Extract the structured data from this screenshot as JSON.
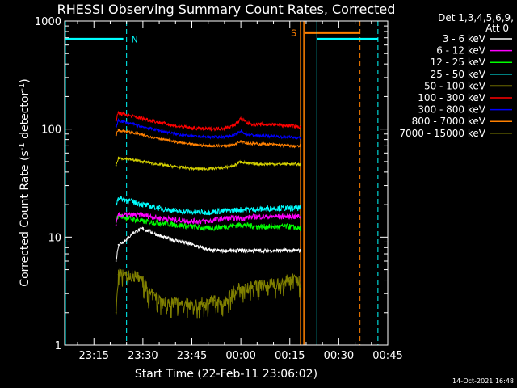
{
  "chart_data": {
    "type": "line",
    "title": "RHESSI Observing Summary Count Rates, Corrected",
    "xlabel": "Start Time (22-Feb-11 23:06:02)",
    "ylabel_main": "Corrected Count Rate (s",
    "ylabel_sup1": "-1",
    "ylabel_mid": " detector",
    "ylabel_sup2": "-1",
    "ylabel_end": ")",
    "yscale": "log",
    "ylim": [
      1,
      1000
    ],
    "xlim": [
      6.03,
      105
    ],
    "x_unit": "minutes after 23:00:00",
    "xticks": [
      {
        "value": 15,
        "label": "23:15"
      },
      {
        "value": 30,
        "label": "23:30"
      },
      {
        "value": 45,
        "label": "23:45"
      },
      {
        "value": 60,
        "label": "00:00"
      },
      {
        "value": 75,
        "label": "00:15"
      },
      {
        "value": 90,
        "label": "00:30"
      },
      {
        "value": 105,
        "label": "00:45"
      }
    ],
    "yticks": [
      {
        "value": 1,
        "label": "1"
      },
      {
        "value": 10,
        "label": "10"
      },
      {
        "value": 100,
        "label": "100"
      },
      {
        "value": 1000,
        "label": "1000"
      }
    ],
    "legend_header": [
      "Det 1,3,4,5,6,9,",
      "Att 0"
    ],
    "legend_placement": "right",
    "data_interval": [
      21.8,
      78.3
    ],
    "series": [
      {
        "name": "3 - 6 keV",
        "color": "#ffffff",
        "x": [
          21.8,
          22.5,
          25,
          27,
          30,
          33,
          36,
          39,
          42,
          45,
          48,
          51,
          54,
          57,
          60,
          63,
          66,
          69,
          72,
          75,
          78.3
        ],
        "y": [
          6.0,
          8.5,
          9.5,
          11.0,
          12.0,
          11.0,
          10.0,
          9.5,
          9.0,
          8.5,
          8.0,
          7.5,
          7.5,
          7.5,
          7.5,
          7.5,
          7.5,
          7.5,
          7.5,
          7.5,
          7.5
        ]
      },
      {
        "name": "6 - 12 keV",
        "color": "#ff00ff",
        "x": [
          21.8,
          22.5,
          25,
          30,
          35,
          40,
          45,
          50,
          55,
          60,
          65,
          70,
          75,
          78.3
        ],
        "y": [
          13.0,
          16.0,
          16.0,
          16.0,
          15.0,
          14.5,
          14.0,
          14.0,
          15.0,
          15.0,
          15.5,
          15.5,
          15.5,
          15.5
        ]
      },
      {
        "name": "12 - 25 keV",
        "color": "#00ff00",
        "x": [
          21.8,
          22.5,
          25,
          30,
          35,
          40,
          45,
          50,
          55,
          60,
          65,
          70,
          75,
          78.3
        ],
        "y": [
          14.0,
          16.0,
          15.0,
          14.0,
          13.5,
          13.0,
          12.5,
          12.0,
          12.5,
          13.0,
          12.5,
          12.5,
          12.5,
          12.0
        ]
      },
      {
        "name": "25 - 50 keV",
        "color": "#00ffff",
        "x": [
          21.8,
          22.5,
          25,
          30,
          35,
          40,
          45,
          50,
          55,
          60,
          65,
          70,
          75,
          78.3
        ],
        "y": [
          20.0,
          23.0,
          22.0,
          20.0,
          18.5,
          17.5,
          17.0,
          17.0,
          17.5,
          18.0,
          18.0,
          18.5,
          18.5,
          18.5
        ]
      },
      {
        "name": "50 - 100 keV",
        "color": "#d4d000",
        "x": [
          21.8,
          22.5,
          25,
          30,
          35,
          40,
          45,
          50,
          55,
          58,
          60,
          62,
          65,
          70,
          75,
          78.3
        ],
        "y": [
          46.0,
          54.0,
          53.0,
          50.0,
          47.0,
          45.0,
          43.0,
          43.0,
          44.0,
          46.0,
          50.0,
          48.0,
          47.5,
          47.5,
          47.5,
          47.0
        ]
      },
      {
        "name": "100 - 300 keV",
        "color": "#ff0000",
        "x": [
          21.8,
          22.5,
          25,
          30,
          35,
          40,
          45,
          50,
          55,
          58,
          60,
          62,
          65,
          70,
          75,
          78.3
        ],
        "y": [
          120.0,
          142.0,
          135.0,
          125.0,
          115.0,
          107.0,
          102.0,
          100.0,
          102.0,
          108.0,
          125.0,
          113.0,
          110.0,
          110.0,
          107.0,
          105.0
        ]
      },
      {
        "name": "300 - 800 keV",
        "color": "#0000ff",
        "x": [
          21.8,
          22.5,
          25,
          30,
          35,
          40,
          45,
          50,
          55,
          58,
          60,
          62,
          65,
          70,
          75,
          78.3
        ],
        "y": [
          105.0,
          120.0,
          115.0,
          105.0,
          97.0,
          90.0,
          86.0,
          84.0,
          85.0,
          88.0,
          95.0,
          89.0,
          87.0,
          86.0,
          84.0,
          83.0
        ]
      },
      {
        "name": "800 - 7000 keV",
        "color": "#ff8000",
        "x": [
          21.8,
          22.5,
          25,
          30,
          35,
          40,
          45,
          50,
          55,
          58,
          60,
          62,
          65,
          70,
          75,
          78.3
        ],
        "y": [
          88.0,
          98.0,
          95.0,
          88.0,
          82.0,
          76.0,
          72.0,
          70.0,
          70.0,
          72.0,
          78.0,
          74.0,
          73.0,
          72.0,
          70.0,
          69.0
        ]
      },
      {
        "name": "7000 - 15000 keV",
        "color": "#808000",
        "x": [
          21.8,
          22.5,
          25,
          28,
          30,
          32,
          34,
          37,
          40,
          43,
          46,
          49,
          52,
          55,
          58,
          61,
          64,
          67,
          70,
          73,
          75,
          78.3
        ],
        "y": [
          2.0,
          4.5,
          4.5,
          4.3,
          4.0,
          3.0,
          2.8,
          2.5,
          2.5,
          2.5,
          2.3,
          2.5,
          2.6,
          2.5,
          3.3,
          3.4,
          3.5,
          3.6,
          3.7,
          3.7,
          4.2,
          3.8
        ]
      }
    ],
    "annotations": [
      {
        "label": "N",
        "color": "#00ffff",
        "x": 25.0,
        "band_x": [
          6.03,
          25.0
        ],
        "band_y": 680,
        "bar_x": [
          6.03,
          24.0
        ]
      },
      {
        "label": "S",
        "color": "#ff8000",
        "x_solid": [
          78.3,
          79.3
        ],
        "x_dashed": 96.5,
        "bar_x": [
          79.5,
          96.5
        ],
        "bar_y": 780
      },
      {
        "label": "",
        "color": "#00ffff",
        "x_solid": 83.3,
        "x_dashed": 102.0,
        "bar_x": [
          83.3,
          102.0
        ],
        "bar_y": 680
      }
    ]
  },
  "footer_date": "14-Oct-2021 16:48"
}
